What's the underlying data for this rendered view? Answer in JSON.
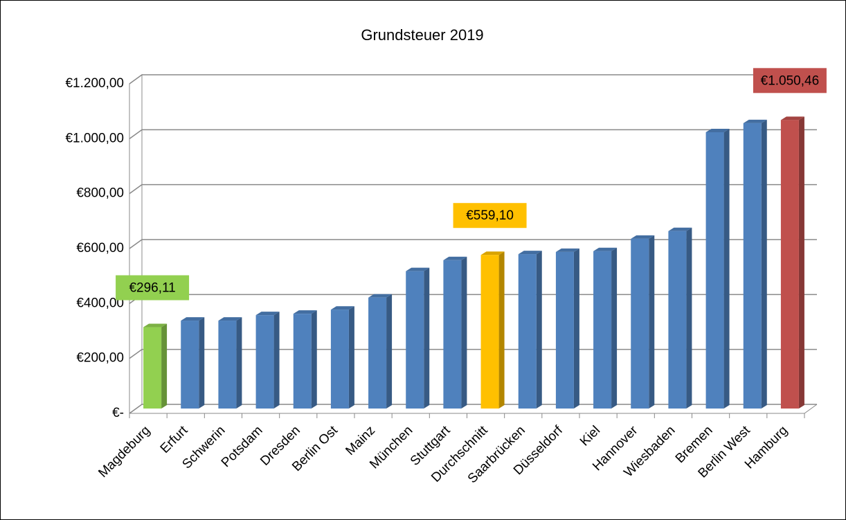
{
  "chart_data": {
    "type": "bar3d",
    "title": "Grundsteuer 2019",
    "categories": [
      "Magdeburg",
      "Erfurt",
      "Schwerin",
      "Potsdam",
      "Dresden",
      "Berlin Ost",
      "Mainz",
      "München",
      "Stuttgart",
      "Durchschnitt",
      "Saarbrücken",
      "Düsseldorf",
      "Kiel",
      "Hannover",
      "Wiesbaden",
      "Bremen",
      "Berlin West",
      "Hamburg"
    ],
    "values": [
      296.11,
      320,
      320,
      340,
      345,
      360,
      404,
      500,
      540,
      559.1,
      562,
      570,
      573,
      618,
      646,
      1006,
      1039,
      1050.46
    ],
    "value_labels": [
      "€296,11",
      null,
      null,
      null,
      null,
      null,
      null,
      null,
      null,
      "€559,10",
      null,
      null,
      null,
      null,
      null,
      null,
      null,
      "€1.050,46"
    ],
    "colors": [
      "#92d050",
      "#4f81bd",
      "#4f81bd",
      "#4f81bd",
      "#4f81bd",
      "#4f81bd",
      "#4f81bd",
      "#4f81bd",
      "#4f81bd",
      "#ffc000",
      "#4f81bd",
      "#4f81bd",
      "#4f81bd",
      "#4f81bd",
      "#4f81bd",
      "#4f81bd",
      "#4f81bd",
      "#c0504d"
    ],
    "ylim": [
      0,
      1200
    ],
    "yticks": [
      {
        "value": 0,
        "label": "€-"
      },
      {
        "value": 200,
        "label": "€200,00"
      },
      {
        "value": 400,
        "label": "€400,00"
      },
      {
        "value": 600,
        "label": "€600,00"
      },
      {
        "value": 800,
        "label": "€800,00"
      },
      {
        "value": 1000,
        "label": "€1.000,00"
      },
      {
        "value": 1200,
        "label": "€1.200,00"
      }
    ],
    "grid": true
  }
}
